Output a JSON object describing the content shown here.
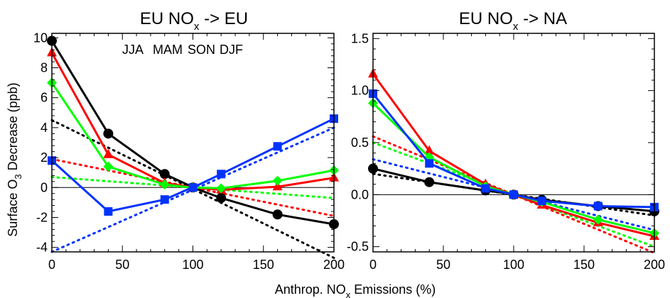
{
  "figure": {
    "ylabel_main": "Surface O",
    "ylabel_sub": "3",
    "ylabel_rest": " Decrease (ppb)",
    "xlabel_main": "Anthrop. NO",
    "xlabel_sub": "x",
    "xlabel_rest": " Emissions (%)"
  },
  "chart_data": [
    {
      "type": "line",
      "title_main": "EU NO",
      "title_sub": "x",
      "title_rest": " -> EU",
      "xlim": [
        0,
        200
      ],
      "ylim": [
        -4.3,
        10.3
      ],
      "xticks": [
        0,
        50,
        100,
        150,
        200
      ],
      "yticks": [
        -4,
        -2,
        0,
        2,
        4,
        6,
        8,
        10
      ],
      "yticks_labels": [
        "-4",
        "-2",
        "0",
        "2",
        "4",
        "6",
        "8",
        "10"
      ],
      "x": [
        0,
        40,
        80,
        97,
        100,
        120,
        160,
        200
      ],
      "legend": [
        {
          "name": "JJA",
          "color": "#000000"
        },
        {
          "name": "MAM",
          "color": "#ff0000"
        },
        {
          "name": "SON",
          "color": "#00ff00"
        },
        {
          "name": "DJF",
          "color": "#0033ff"
        }
      ],
      "series": [
        {
          "name": "JJA",
          "color": "#000000",
          "marker": "circle",
          "values": [
            9.8,
            3.6,
            0.9,
            0.15,
            0.0,
            -0.7,
            -1.8,
            -2.45
          ],
          "trend": [
            4.5,
            -4.7
          ]
        },
        {
          "name": "MAM",
          "color": "#ff0000",
          "marker": "triangle",
          "values": [
            9.0,
            2.2,
            0.3,
            0.05,
            0.0,
            -0.15,
            0.05,
            0.65
          ],
          "trend": [
            1.9,
            -1.9
          ]
        },
        {
          "name": "SON",
          "color": "#00ff00",
          "marker": "diamond",
          "values": [
            7.0,
            1.4,
            0.2,
            0.02,
            0.0,
            -0.05,
            0.45,
            1.15
          ],
          "trend": [
            0.7,
            -0.7
          ]
        },
        {
          "name": "DJF",
          "color": "#0033ff",
          "marker": "square",
          "values": [
            1.8,
            -1.6,
            -0.8,
            -0.1,
            0.0,
            0.9,
            2.75,
            4.6
          ],
          "trend": [
            -4.3,
            4.0
          ]
        }
      ]
    },
    {
      "type": "line",
      "title_main": "EU NO",
      "title_sub": "x",
      "title_rest": " -> NA",
      "xlim": [
        0,
        200
      ],
      "ylim": [
        -0.55,
        1.55
      ],
      "xticks": [
        0,
        50,
        100,
        150,
        200
      ],
      "yticks": [
        -0.5,
        0.0,
        0.5,
        1.0,
        1.5
      ],
      "yticks_labels": [
        "-0.5",
        "0.0",
        "0.5",
        "1.0",
        "1.5"
      ],
      "x": [
        0,
        40,
        80,
        97,
        100,
        120,
        160,
        200
      ],
      "series": [
        {
          "name": "JJA",
          "color": "#000000",
          "marker": "circle",
          "values": [
            0.25,
            0.12,
            0.04,
            0.01,
            0.0,
            -0.05,
            -0.11,
            -0.16
          ],
          "trend": [
            0.2,
            -0.2
          ]
        },
        {
          "name": "MAM",
          "color": "#ff0000",
          "marker": "triangle",
          "values": [
            1.16,
            0.42,
            0.1,
            0.01,
            0.0,
            -0.1,
            -0.27,
            -0.4
          ],
          "trend": [
            0.56,
            -0.56
          ]
        },
        {
          "name": "SON",
          "color": "#00ff00",
          "marker": "diamond",
          "values": [
            0.88,
            0.36,
            0.08,
            0.01,
            0.0,
            -0.07,
            -0.24,
            -0.37
          ],
          "trend": [
            0.5,
            -0.5
          ]
        },
        {
          "name": "DJF",
          "color": "#0033ff",
          "marker": "square",
          "values": [
            0.97,
            0.3,
            0.06,
            0.01,
            0.0,
            -0.06,
            -0.11,
            -0.12
          ],
          "trend": [
            0.34,
            -0.34
          ]
        }
      ]
    }
  ]
}
